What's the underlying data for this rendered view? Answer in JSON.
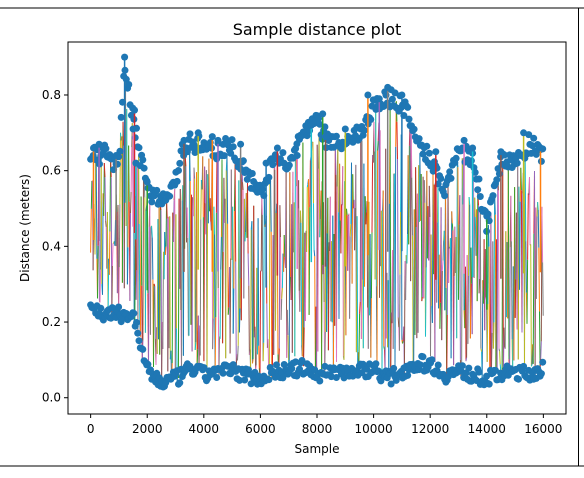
{
  "chart_data": {
    "type": "line",
    "title": "Sample distance plot",
    "xlabel": "Sample",
    "ylabel": "Distance (meters)",
    "xlim": [
      -800,
      16800
    ],
    "ylim": [
      -0.043,
      0.94
    ],
    "xticks": [
      0,
      2000,
      4000,
      6000,
      8000,
      10000,
      12000,
      14000,
      16000
    ],
    "xtick_labels": [
      "0",
      "2000",
      "4000",
      "6000",
      "8000",
      "10000",
      "12000",
      "14000",
      "16000"
    ],
    "yticks": [
      0.0,
      0.2,
      0.4,
      0.6,
      0.8
    ],
    "ytick_labels": [
      "0.0",
      "0.2",
      "0.4",
      "0.6",
      "0.8"
    ],
    "grid": false,
    "legend": "none",
    "markers": "circle",
    "series_colors": [
      "#1f77b4",
      "#ff7f0e",
      "#2ca02c",
      "#d62728",
      "#9467bd",
      "#8c564b",
      "#e377c2",
      "#7f7f7f",
      "#bcbd22",
      "#17becf"
    ],
    "envelope": {
      "x": [
        0,
        500,
        1000,
        1200,
        1500,
        2000,
        2500,
        3000,
        3300,
        3500,
        4000,
        4500,
        5000,
        5500,
        6000,
        6500,
        7000,
        7500,
        8000,
        8500,
        9000,
        9500,
        10000,
        10500,
        11000,
        11500,
        12000,
        12500,
        13000,
        13500,
        14000,
        14500,
        15000,
        15500,
        16000
      ],
      "lower": [
        0.22,
        0.2,
        0.2,
        0.2,
        0.2,
        0.05,
        0.02,
        0.03,
        0.04,
        0.06,
        0.04,
        0.05,
        0.05,
        0.04,
        0.03,
        0.05,
        0.05,
        0.06,
        0.04,
        0.05,
        0.05,
        0.05,
        0.06,
        0.03,
        0.05,
        0.07,
        0.07,
        0.04,
        0.05,
        0.04,
        0.03,
        0.04,
        0.05,
        0.04,
        0.06
      ],
      "upper": [
        0.66,
        0.67,
        0.64,
        0.9,
        0.76,
        0.57,
        0.55,
        0.6,
        0.69,
        0.7,
        0.69,
        0.68,
        0.69,
        0.62,
        0.56,
        0.66,
        0.64,
        0.72,
        0.75,
        0.69,
        0.71,
        0.72,
        0.8,
        0.82,
        0.8,
        0.73,
        0.65,
        0.58,
        0.68,
        0.66,
        0.48,
        0.65,
        0.64,
        0.7,
        0.66
      ]
    },
    "peaks": [
      {
        "x": 100,
        "y": 0.66
      },
      {
        "x": 300,
        "y": 0.67
      },
      {
        "x": 900,
        "y": 0.64
      },
      {
        "x": 1200,
        "y": 0.9
      },
      {
        "x": 1550,
        "y": 0.76
      },
      {
        "x": 1500,
        "y": 0.71
      },
      {
        "x": 1600,
        "y": 0.62
      },
      {
        "x": 2000,
        "y": 0.57
      },
      {
        "x": 3300,
        "y": 0.68
      },
      {
        "x": 3800,
        "y": 0.7
      },
      {
        "x": 4300,
        "y": 0.69
      },
      {
        "x": 4500,
        "y": 0.68
      },
      {
        "x": 5300,
        "y": 0.67
      },
      {
        "x": 6200,
        "y": 0.62
      },
      {
        "x": 6600,
        "y": 0.66
      },
      {
        "x": 7300,
        "y": 0.64
      },
      {
        "x": 7800,
        "y": 0.72
      },
      {
        "x": 8200,
        "y": 0.75
      },
      {
        "x": 8300,
        "y": 0.69
      },
      {
        "x": 9000,
        "y": 0.71
      },
      {
        "x": 9800,
        "y": 0.8
      },
      {
        "x": 10200,
        "y": 0.79
      },
      {
        "x": 10500,
        "y": 0.82
      },
      {
        "x": 11000,
        "y": 0.8
      },
      {
        "x": 12200,
        "y": 0.65
      },
      {
        "x": 13200,
        "y": 0.68
      },
      {
        "x": 13500,
        "y": 0.66
      },
      {
        "x": 14000,
        "y": 0.48
      },
      {
        "x": 14500,
        "y": 0.65
      },
      {
        "x": 15300,
        "y": 0.7
      },
      {
        "x": 15900,
        "y": 0.66
      }
    ]
  }
}
